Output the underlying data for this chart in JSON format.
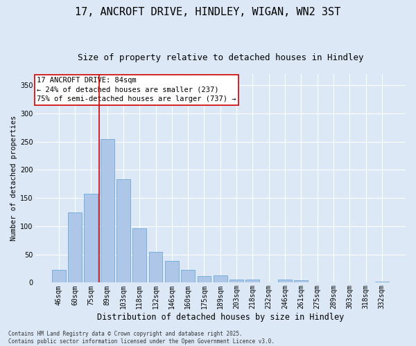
{
  "title": "17, ANCROFT DRIVE, HINDLEY, WIGAN, WN2 3ST",
  "subtitle": "Size of property relative to detached houses in Hindley",
  "xlabel": "Distribution of detached houses by size in Hindley",
  "ylabel": "Number of detached properties",
  "categories": [
    "46sqm",
    "60sqm",
    "75sqm",
    "89sqm",
    "103sqm",
    "118sqm",
    "132sqm",
    "146sqm",
    "160sqm",
    "175sqm",
    "189sqm",
    "203sqm",
    "218sqm",
    "232sqm",
    "246sqm",
    "261sqm",
    "275sqm",
    "289sqm",
    "303sqm",
    "318sqm",
    "332sqm"
  ],
  "values": [
    22,
    124,
    157,
    255,
    183,
    96,
    55,
    38,
    22,
    11,
    13,
    6,
    5,
    0,
    5,
    4,
    0,
    0,
    1,
    0,
    2
  ],
  "bar_color": "#aec6e8",
  "bar_edge_color": "#5a9fd4",
  "background_color": "#dce8f5",
  "grid_color": "#ffffff",
  "vline_color": "#cc0000",
  "annotation_text": "17 ANCROFT DRIVE: 84sqm\n← 24% of detached houses are smaller (237)\n75% of semi-detached houses are larger (737) →",
  "annotation_box_color": "#ffffff",
  "annotation_box_edge": "#cc0000",
  "ylim": [
    0,
    370
  ],
  "yticks": [
    0,
    50,
    100,
    150,
    200,
    250,
    300,
    350
  ],
  "footer": "Contains HM Land Registry data © Crown copyright and database right 2025.\nContains public sector information licensed under the Open Government Licence v3.0.",
  "title_fontsize": 11,
  "subtitle_fontsize": 9,
  "xlabel_fontsize": 8.5,
  "ylabel_fontsize": 7.5,
  "tick_fontsize": 7,
  "annotation_fontsize": 7.5,
  "footer_fontsize": 5.5
}
